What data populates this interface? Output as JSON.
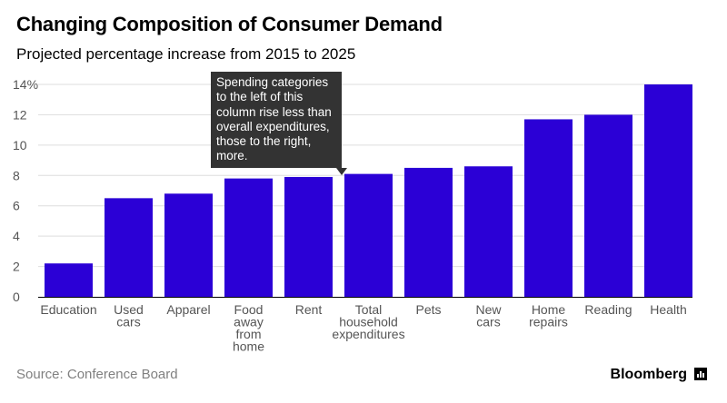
{
  "header": {
    "title": "Changing Composition of Consumer Demand",
    "subtitle": "Projected percentage increase from 2015 to 2025"
  },
  "annotation": {
    "text": "Spending categories to the left of this column rise less than overall expenditures, those to the right, more."
  },
  "footer": {
    "source": "Source: Conference Board",
    "brand": "Bloomberg",
    "brand_icon": "bar-chart-icon"
  },
  "colors": {
    "bar": "#2b00d6",
    "axis_text": "#555555",
    "baseline": "#000000",
    "gridline": "#dddddd",
    "callout_bg": "#333333"
  },
  "chart_data": {
    "type": "bar",
    "title": "Changing Composition of Consumer Demand",
    "subtitle": "Projected percentage increase from 2015 to 2025",
    "categories": [
      [
        "Education"
      ],
      [
        "Used",
        "cars"
      ],
      [
        "Apparel"
      ],
      [
        "Food",
        "away",
        "from",
        "home"
      ],
      [
        "Rent"
      ],
      [
        "Total",
        "household",
        "expenditures"
      ],
      [
        "Pets"
      ],
      [
        "New",
        "cars"
      ],
      [
        "Home",
        "repairs"
      ],
      [
        "Reading"
      ],
      [
        "Health"
      ]
    ],
    "values": [
      2.2,
      6.5,
      6.8,
      7.8,
      7.9,
      8.1,
      8.5,
      8.6,
      11.7,
      12.0,
      14.0
    ],
    "ylim": [
      0,
      14
    ],
    "yticks": [
      0,
      2,
      4,
      6,
      8,
      10,
      12,
      14
    ],
    "ytick_labels": [
      "0",
      "2",
      "4",
      "6",
      "8",
      "10",
      "12",
      "14%"
    ],
    "xlabel": "",
    "ylabel": "",
    "grid": true
  }
}
